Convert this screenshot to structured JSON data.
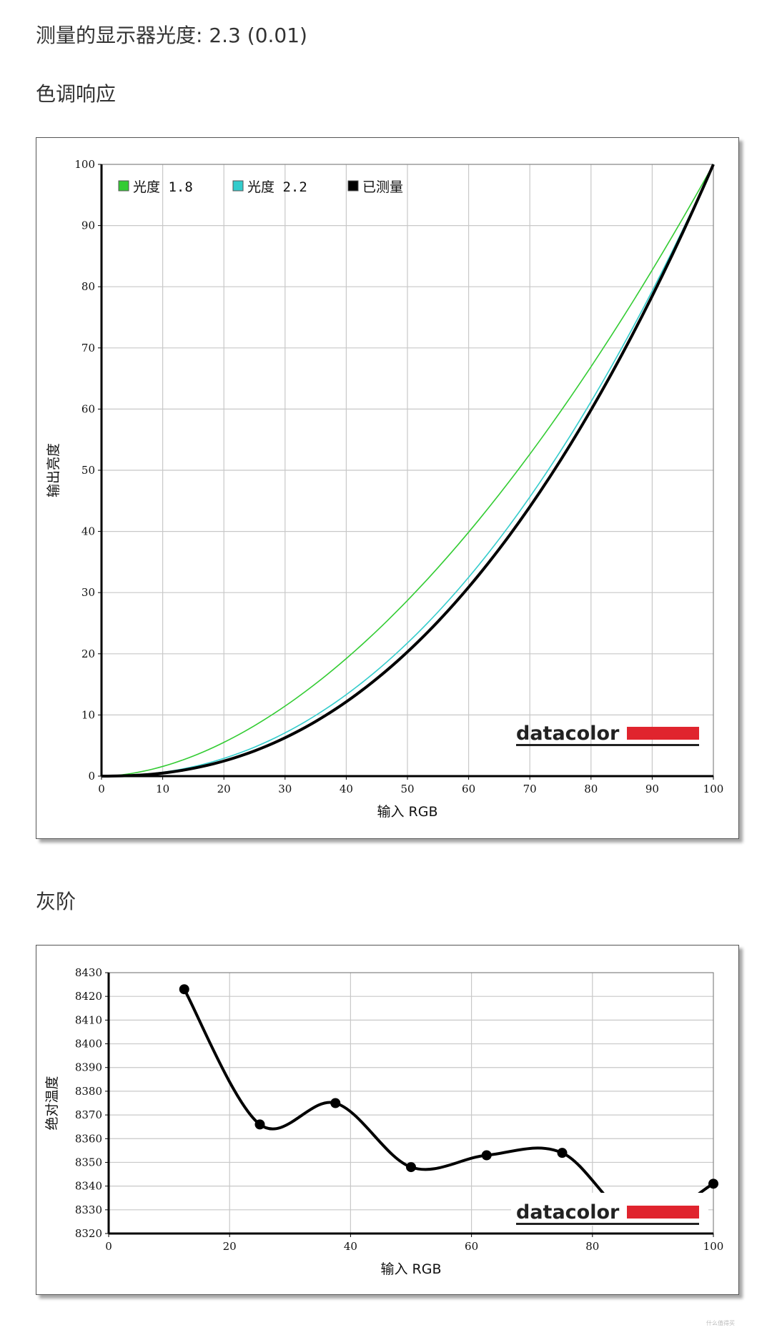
{
  "header": {
    "gamma_label": "测量的显示器光度:",
    "gamma_value": "2.3 (0.01)",
    "tone_title": "色调响应",
    "gray_title": "灰阶"
  },
  "watermark": "什么值得买",
  "chart_data": [
    {
      "type": "line",
      "title": "",
      "xlabel": "输入 RGB",
      "ylabel": "输出亮度",
      "xlim": [
        0,
        100
      ],
      "ylim": [
        0,
        100
      ],
      "xticks": [
        "0",
        "10",
        "20",
        "30",
        "40",
        "50",
        "60",
        "70",
        "80",
        "90",
        "100"
      ],
      "yticks": [
        "0",
        "10",
        "20",
        "30",
        "40",
        "50",
        "60",
        "70",
        "80",
        "90",
        "100"
      ],
      "grid": true,
      "legend_position": "top-left",
      "logo": {
        "text": "datacolor",
        "bar_color": "#e0242e"
      },
      "series": [
        {
          "name": "光度 1.8",
          "color": "#33cc33",
          "gamma": 1.8,
          "x": [
            0,
            10,
            20,
            30,
            40,
            50,
            60,
            70,
            80,
            90,
            100
          ],
          "y": [
            0,
            1.6,
            5.5,
            11.5,
            19.2,
            28.7,
            39.9,
            52.6,
            66.9,
            82.7,
            100
          ]
        },
        {
          "name": "光度 2.2",
          "color": "#33cccc",
          "gamma": 2.2,
          "x": [
            0,
            10,
            20,
            30,
            40,
            50,
            60,
            70,
            80,
            90,
            100
          ],
          "y": [
            0,
            0.6,
            2.9,
            7.1,
            13.3,
            21.8,
            32.5,
            45.6,
            61.2,
            79.3,
            100
          ]
        },
        {
          "name": "已测量",
          "color": "#000000",
          "gamma": 2.3,
          "x": [
            0,
            10,
            20,
            30,
            40,
            50,
            60,
            70,
            80,
            90,
            100
          ],
          "y": [
            0,
            0.5,
            2.5,
            6.3,
            12.1,
            20.3,
            30.9,
            44.0,
            59.8,
            78.5,
            100
          ]
        }
      ]
    },
    {
      "type": "line",
      "title": "",
      "xlabel": "输入 RGB",
      "ylabel": "绝对温度",
      "xlim": [
        0,
        100
      ],
      "ylim": [
        8320,
        8430
      ],
      "xticks": [
        "0",
        "20",
        "40",
        "60",
        "80",
        "100"
      ],
      "yticks": [
        "8320",
        "8330",
        "8340",
        "8350",
        "8360",
        "8370",
        "8380",
        "8390",
        "8400",
        "8410",
        "8420",
        "8430"
      ],
      "grid": true,
      "logo": {
        "text": "datacolor",
        "bar_color": "#e0242e"
      },
      "series": [
        {
          "name": "",
          "color": "#000000",
          "x": [
            12.5,
            25,
            37.5,
            50,
            62.5,
            75,
            87.5,
            100
          ],
          "y": [
            8423,
            8366,
            8375,
            8348,
            8353,
            8354,
            8325,
            8341
          ]
        }
      ]
    }
  ]
}
